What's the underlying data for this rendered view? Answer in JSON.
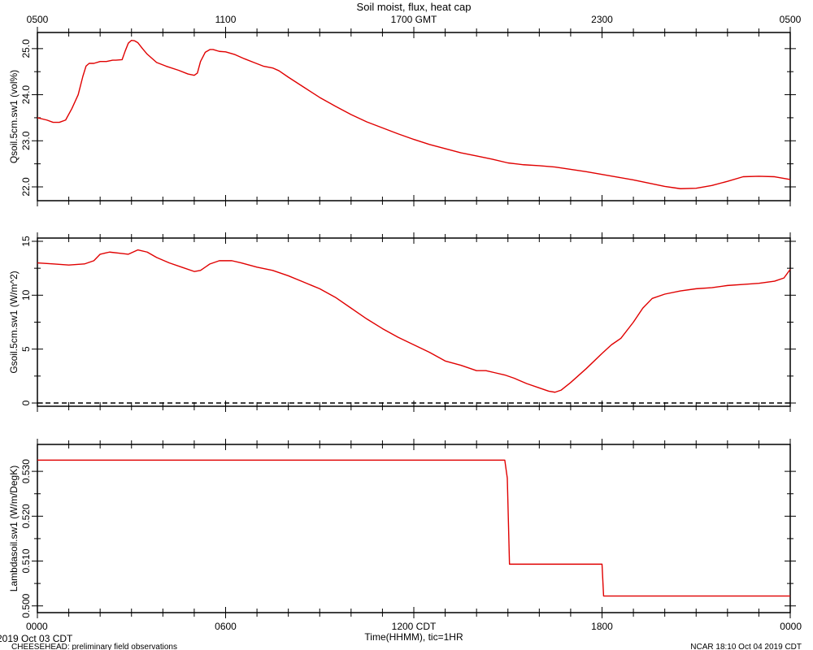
{
  "title": "Soil moist, flux, heat cap",
  "top_axis": {
    "ticks": [
      {
        "hour": 0,
        "label": "0500"
      },
      {
        "hour": 6,
        "label": "1100"
      },
      {
        "hour": 12,
        "label": "1700 GMT"
      },
      {
        "hour": 18,
        "label": "2300"
      },
      {
        "hour": 24,
        "label": "0500"
      }
    ]
  },
  "bottom_axis": {
    "ticks": [
      {
        "hour": 0,
        "label": "0000"
      },
      {
        "hour": 6,
        "label": "0600"
      },
      {
        "hour": 12,
        "label": "1200 CDT"
      },
      {
        "hour": 18,
        "label": "1800"
      },
      {
        "hour": 24,
        "label": "0000"
      }
    ],
    "xlabel": "Time(HHMM), tic=1HR"
  },
  "footer": {
    "date": "2019 Oct 03 CDT",
    "project": "CHEESEHEAD: preliminary field observations",
    "stamp": "NCAR 18:10 Oct 04 2019 CDT"
  },
  "series_color": "#e00000",
  "chart_data": [
    {
      "type": "line",
      "ylabel": "Qsoil.5cm.sw1 (vol%)",
      "xlim": [
        0,
        24
      ],
      "ylim": [
        21.7,
        25.35
      ],
      "yticks": [
        22.0,
        23.0,
        24.0,
        25.0
      ],
      "ytick_labels": [
        "22.0",
        "23.0",
        "24.0",
        "25.0"
      ],
      "zero_line": false,
      "step": false,
      "x": [
        0,
        0.3,
        0.5,
        0.7,
        0.9,
        1.1,
        1.3,
        1.45,
        1.55,
        1.65,
        1.8,
        2.0,
        2.2,
        2.4,
        2.5,
        2.7,
        2.8,
        2.9,
        3.0,
        3.1,
        3.2,
        3.35,
        3.5,
        3.8,
        4.1,
        4.5,
        4.8,
        5.0,
        5.1,
        5.2,
        5.35,
        5.5,
        5.6,
        5.8,
        6.0,
        6.3,
        6.6,
        6.9,
        7.2,
        7.5,
        7.7,
        8.0,
        8.5,
        9.0,
        9.5,
        10.0,
        10.5,
        11.0,
        11.5,
        12.0,
        12.5,
        13.0,
        13.5,
        14.0,
        14.5,
        15.0,
        15.5,
        16.0,
        16.5,
        17.0,
        17.5,
        18.0,
        18.5,
        19.0,
        19.5,
        20.0,
        20.3,
        20.5,
        21.0,
        21.5,
        22.0,
        22.5,
        23.0,
        23.5,
        24.0
      ],
      "y": [
        23.5,
        23.45,
        23.4,
        23.4,
        23.45,
        23.7,
        24.0,
        24.4,
        24.62,
        24.68,
        24.68,
        24.72,
        24.72,
        24.75,
        24.75,
        24.76,
        24.95,
        25.12,
        25.18,
        25.17,
        25.13,
        25.0,
        24.88,
        24.7,
        24.62,
        24.53,
        24.45,
        24.42,
        24.47,
        24.72,
        24.92,
        24.98,
        24.98,
        24.94,
        24.93,
        24.87,
        24.78,
        24.7,
        24.62,
        24.58,
        24.52,
        24.38,
        24.16,
        23.94,
        23.75,
        23.57,
        23.41,
        23.28,
        23.15,
        23.03,
        22.92,
        22.83,
        22.74,
        22.67,
        22.6,
        22.52,
        22.48,
        22.46,
        22.43,
        22.38,
        22.33,
        22.27,
        22.21,
        22.15,
        22.08,
        22.01,
        21.98,
        21.96,
        21.97,
        22.03,
        22.12,
        22.22,
        22.23,
        22.22,
        22.16
      ]
    },
    {
      "type": "line",
      "ylabel": "Gsoil.5cm.sw1 (W/m^2)",
      "xlim": [
        0,
        24
      ],
      "ylim": [
        -0.3,
        15.3
      ],
      "yticks": [
        0,
        5,
        10,
        15
      ],
      "ytick_labels": [
        "0",
        "5",
        "10",
        "15"
      ],
      "zero_line": true,
      "step": false,
      "x": [
        0,
        0.5,
        1.0,
        1.5,
        1.8,
        2.0,
        2.3,
        2.6,
        2.9,
        3.2,
        3.5,
        3.8,
        4.2,
        4.6,
        5.0,
        5.2,
        5.5,
        5.8,
        6.2,
        6.5,
        7.0,
        7.5,
        8.0,
        8.5,
        9.0,
        9.5,
        10.0,
        10.5,
        11.0,
        11.5,
        12.0,
        12.5,
        13.0,
        13.5,
        14.0,
        14.3,
        14.6,
        14.9,
        15.2,
        15.6,
        16.0,
        16.3,
        16.5,
        16.7,
        17.0,
        17.5,
        18.0,
        18.3,
        18.6,
        19.0,
        19.3,
        19.6,
        20.0,
        20.5,
        21.0,
        21.5,
        22.0,
        22.5,
        23.0,
        23.5,
        23.8,
        24.0
      ],
      "y": [
        13.0,
        12.9,
        12.8,
        12.9,
        13.2,
        13.8,
        14.0,
        13.9,
        13.8,
        14.2,
        14.0,
        13.5,
        13.0,
        12.6,
        12.2,
        12.3,
        12.9,
        13.2,
        13.2,
        13.0,
        12.6,
        12.3,
        11.8,
        11.2,
        10.6,
        9.8,
        8.8,
        7.8,
        6.9,
        6.1,
        5.4,
        4.7,
        3.9,
        3.5,
        3.0,
        3.0,
        2.8,
        2.6,
        2.3,
        1.8,
        1.4,
        1.1,
        1.0,
        1.2,
        1.9,
        3.2,
        4.6,
        5.4,
        6.0,
        7.5,
        8.8,
        9.7,
        10.1,
        10.4,
        10.6,
        10.7,
        10.9,
        11.0,
        11.1,
        11.3,
        11.6,
        12.4
      ]
    },
    {
      "type": "line",
      "ylabel": "Lambdasoil.sw1 (W/m/DegK)",
      "xlim": [
        0,
        24
      ],
      "ylim": [
        0.4985,
        0.536
      ],
      "yticks": [
        0.5,
        0.51,
        0.52,
        0.53
      ],
      "ytick_labels": [
        "0.500",
        "0.510",
        "0.520",
        "0.530"
      ],
      "zero_line": false,
      "step": true,
      "x": [
        0,
        14.9,
        14.98,
        15.05,
        18.0,
        18.05,
        24.0
      ],
      "y": [
        0.5325,
        0.5325,
        0.5285,
        0.5093,
        0.5093,
        0.5022,
        0.5022
      ]
    }
  ]
}
